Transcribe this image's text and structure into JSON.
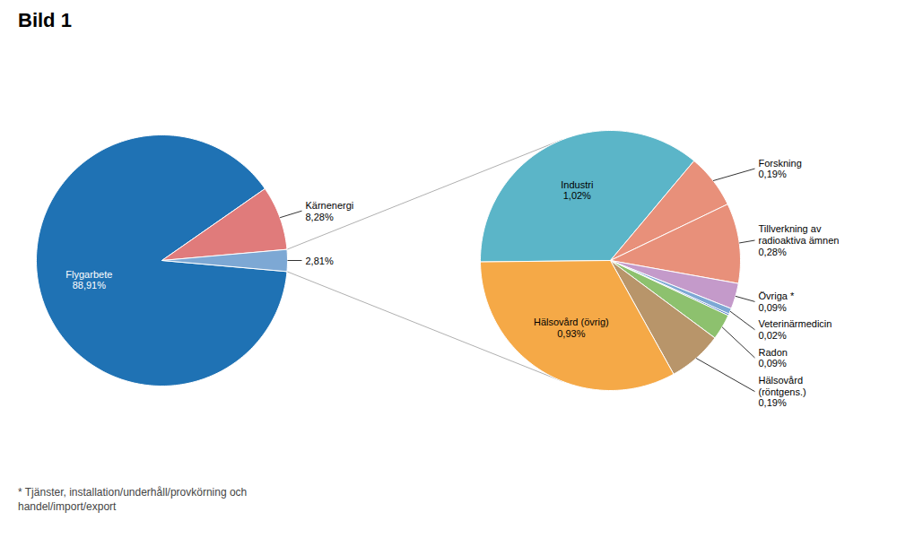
{
  "chart_data": [
    {
      "type": "pie",
      "title": "Bild 1",
      "categories": [
        "Flygarbete",
        "Kärnenergi",
        null
      ],
      "values": [
        88.91,
        8.28,
        2.81
      ],
      "value_labels": [
        "88,91%",
        "8,28%",
        "2,81%"
      ],
      "colors": [
        "#1F72B4",
        "#E07B7B",
        "#7DA8D4"
      ],
      "data_labels": true,
      "annotations": [
        "* Tjänster, installation/underhåll/provkörning och\nhandel/import/export"
      ]
    },
    {
      "type": "pie",
      "categories": [
        "Industri",
        "Forskning",
        "Tillverkning av\nradioaktiva ämnen",
        "Övriga *",
        "Veterinärmedicin",
        null,
        "Radon",
        "Hälsovård\n(röntgens.)",
        "Hälsovård (övrig)"
      ],
      "values": [
        1.02,
        0.19,
        0.28,
        0.09,
        0.02,
        0.006,
        0.09,
        0.19,
        0.925
      ],
      "value_labels": [
        "1,02%",
        "0,19%",
        "0,28%",
        "0,09%",
        "0,02%",
        null,
        "0,09%",
        "0,19%",
        "0,93%"
      ],
      "colors": [
        "#5BB5C8",
        "#E8907A",
        "#E8907A",
        "#C49ACA",
        "#7DA8D4",
        "#4472C4",
        "#8DC16E",
        "#B8956A",
        "#F5A947"
      ],
      "data_labels": true
    }
  ]
}
